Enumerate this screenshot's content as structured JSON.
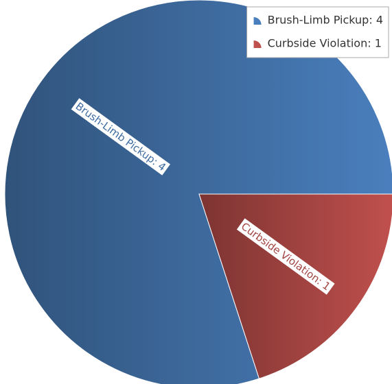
{
  "chart_data": {
    "type": "pie",
    "categories": [
      "Brush-Limb Pickup: 4",
      "Curbside Violation: 1"
    ],
    "values": [
      4,
      1
    ],
    "value_labels": [
      "Brush-Limb Pickup: 4",
      "Curbside Violation: 1"
    ],
    "colors": [
      "#4a7fbd",
      "#c0504d"
    ],
    "legend": "top-right"
  }
}
